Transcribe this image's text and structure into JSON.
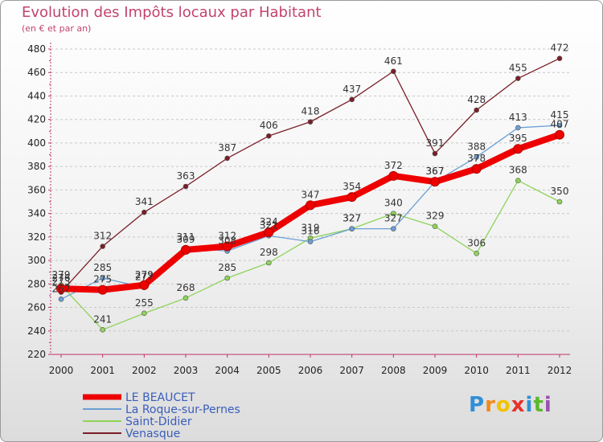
{
  "title": "Evolution des Impôts locaux par Habitant",
  "subtitle": "(en € et par an)",
  "logo": {
    "letters": [
      "P",
      "r",
      "o",
      "x",
      "i",
      "t",
      "i"
    ],
    "colors": [
      "#2f8fd8",
      "#f08a1c",
      "#f2c300",
      "#e8302a",
      "#2f8fd8",
      "#5cb82e",
      "#9c4fb0"
    ]
  },
  "chart_data": {
    "type": "line",
    "title": "Evolution des Impôts locaux par Habitant",
    "subtitle": "(en € et par an)",
    "xlabel": "",
    "ylabel": "",
    "x": [
      "2000",
      "2001",
      "2002",
      "2003",
      "2004",
      "2005",
      "2006",
      "2007",
      "2008",
      "2009",
      "2010",
      "2011",
      "2012"
    ],
    "ylim": [
      220,
      480
    ],
    "yticks": [
      "220",
      "240",
      "260",
      "280",
      "300",
      "320",
      "340",
      "360",
      "380",
      "400",
      "420",
      "440",
      "460",
      "480"
    ],
    "grid": "horizontal dashed",
    "legend": "bottom-left",
    "series": [
      {
        "name": "Venasque",
        "color": "#7a1e28",
        "values": [
          273,
          312,
          341,
          363,
          387,
          406,
          418,
          437,
          461,
          391,
          428,
          455,
          472
        ],
        "labels": [
          "273",
          "312",
          "341",
          "363",
          "387",
          "406",
          "418",
          "437",
          "461",
          "391",
          "428",
          "455",
          "472"
        ]
      },
      {
        "name": "Saint-Didier",
        "color": "#8fd35a",
        "values": [
          279,
          241,
          255,
          268,
          285,
          298,
          319,
          327,
          340,
          329,
          306,
          368,
          350
        ],
        "labels": [
          "279",
          "241",
          "255",
          "268",
          "285",
          "298",
          "319",
          "327",
          "340",
          "329",
          "306",
          "368",
          "350"
        ]
      },
      {
        "name": "La Roque-sur-Pernes",
        "color": "#6a9fd4",
        "values": [
          267,
          285,
          277,
          311,
          308,
          321,
          316,
          327,
          327,
          367,
          388,
          413,
          415
        ],
        "labels": [
          "267",
          "285",
          "277",
          "311",
          "308",
          "321",
          "316",
          "327",
          "327",
          "367",
          "388",
          "413",
          "415"
        ]
      },
      {
        "name": "LE BEAUCET",
        "color": "#ee0000",
        "values": [
          276,
          275,
          279,
          309,
          312,
          324,
          347,
          354,
          372,
          367,
          378,
          395,
          407
        ],
        "labels": [
          "276",
          "275",
          "279",
          "309",
          "312",
          "324",
          "347",
          "354",
          "372",
          "367",
          "378",
          "395",
          "407"
        ]
      }
    ],
    "legend_order": [
      "LE BEAUCET",
      "La Roque-sur-Pernes",
      "Saint-Didier",
      "Venasque"
    ]
  }
}
